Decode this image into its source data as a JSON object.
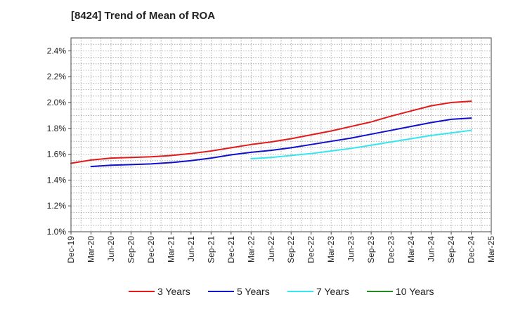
{
  "title": "[8424]  Trend of Mean of ROA",
  "chart_data": {
    "type": "line",
    "title": "[8424]  Trend of Mean of ROA",
    "xlabel": "",
    "ylabel": "",
    "ylim": [
      1.0,
      2.5
    ],
    "grid": true,
    "legend_position": "bottom",
    "x_ticks": [
      "Dec-19",
      "Mar-20",
      "Jun-20",
      "Sep-20",
      "Dec-20",
      "Mar-21",
      "Jun-21",
      "Sep-21",
      "Dec-21",
      "Mar-22",
      "Jun-22",
      "Sep-22",
      "Dec-22",
      "Mar-23",
      "Jun-23",
      "Sep-23",
      "Dec-23",
      "Mar-24",
      "Jun-24",
      "Sep-24",
      "Dec-24",
      "Mar-25"
    ],
    "y_ticks": [
      {
        "value": 1.0,
        "label": "1.0%"
      },
      {
        "value": 1.2,
        "label": "1.2%"
      },
      {
        "value": 1.4,
        "label": "1.4%"
      },
      {
        "value": 1.6,
        "label": "1.6%"
      },
      {
        "value": 1.8,
        "label": "1.8%"
      },
      {
        "value": 2.0,
        "label": "2.0%"
      },
      {
        "value": 2.2,
        "label": "2.2%"
      },
      {
        "value": 2.4,
        "label": "2.4%"
      }
    ],
    "series": [
      {
        "name": "3 Years",
        "color": "#e31a1c",
        "start_index": 0,
        "values": [
          1.53,
          1.555,
          1.57,
          1.575,
          1.58,
          1.59,
          1.605,
          1.625,
          1.65,
          1.675,
          1.695,
          1.72,
          1.75,
          1.78,
          1.815,
          1.85,
          1.895,
          1.935,
          1.975,
          2.0,
          2.01
        ]
      },
      {
        "name": "5 Years",
        "color": "#1010cc",
        "start_index": 1,
        "values": [
          1.505,
          1.515,
          1.52,
          1.525,
          1.535,
          1.55,
          1.57,
          1.595,
          1.615,
          1.63,
          1.65,
          1.675,
          1.7,
          1.725,
          1.755,
          1.785,
          1.815,
          1.845,
          1.87,
          1.88
        ]
      },
      {
        "name": "7 Years",
        "color": "#33e6f0",
        "start_index": 9,
        "values": [
          1.565,
          1.575,
          1.59,
          1.605,
          1.625,
          1.645,
          1.67,
          1.695,
          1.72,
          1.745,
          1.765,
          1.785
        ]
      },
      {
        "name": "10 Years",
        "color": "#228b22",
        "start_index": 0,
        "values": []
      }
    ]
  }
}
